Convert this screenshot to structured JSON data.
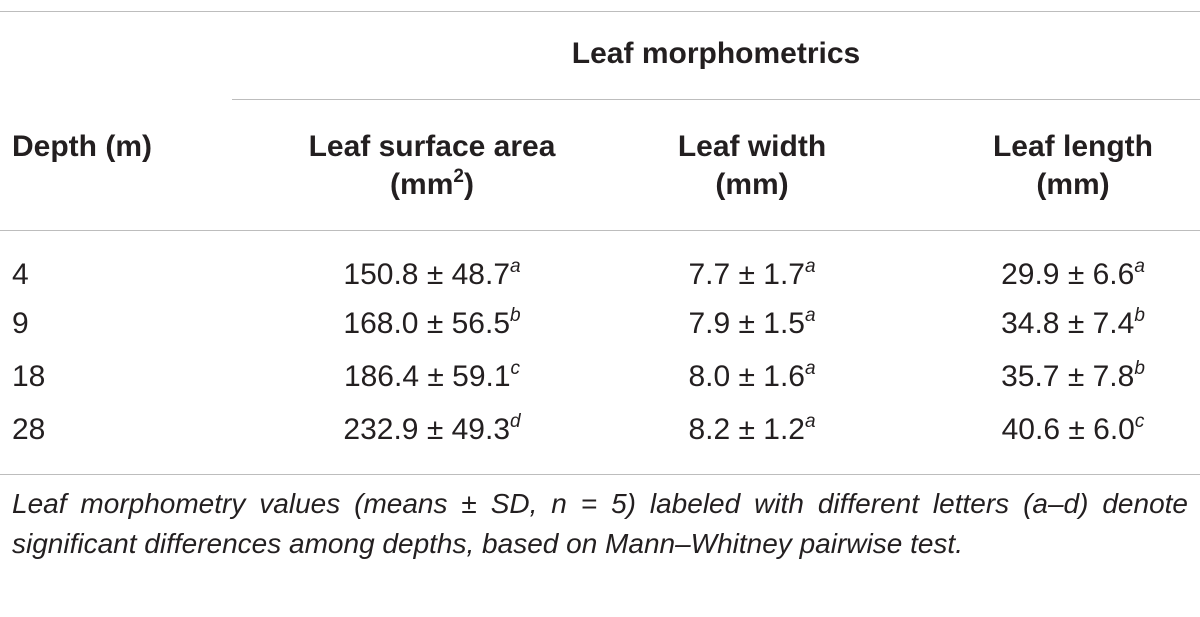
{
  "table": {
    "group_header": "Leaf morphometrics",
    "columns": {
      "depth": "Depth (m)",
      "area_line1": "Leaf surface area",
      "area_line2_pre": "(mm",
      "area_line2_sup": "2",
      "area_line2_post": ")",
      "width_line1": "Leaf width",
      "width_line2": "(mm)",
      "length_line1": "Leaf length",
      "length_line2": "(mm)"
    },
    "rows": [
      {
        "depth": "4",
        "area": "150.8 ± 48.7",
        "area_sig": "a",
        "width": "7.7 ± 1.7",
        "width_sig": "a",
        "length": "29.9 ± 6.6",
        "length_sig": "a"
      },
      {
        "depth": "9",
        "area": "168.0 ± 56.5",
        "area_sig": "b",
        "width": "7.9 ± 1.5",
        "width_sig": "a",
        "length": "34.8 ± 7.4",
        "length_sig": "b"
      },
      {
        "depth": "18",
        "area": "186.4 ± 59.1",
        "area_sig": "c",
        "width": "8.0 ± 1.6",
        "width_sig": "a",
        "length": "35.7 ± 7.8",
        "length_sig": "b"
      },
      {
        "depth": "28",
        "area": "232.9 ± 49.3",
        "area_sig": "d",
        "width": "8.2 ± 1.2",
        "width_sig": "a",
        "length": "40.6 ± 6.0",
        "length_sig": "c"
      }
    ],
    "footnote": "Leaf morphometry values (means ± SD, n = 5) labeled with different letters (a–d) denote significant differences among depths, based on Mann–Whitney pairwise test."
  }
}
